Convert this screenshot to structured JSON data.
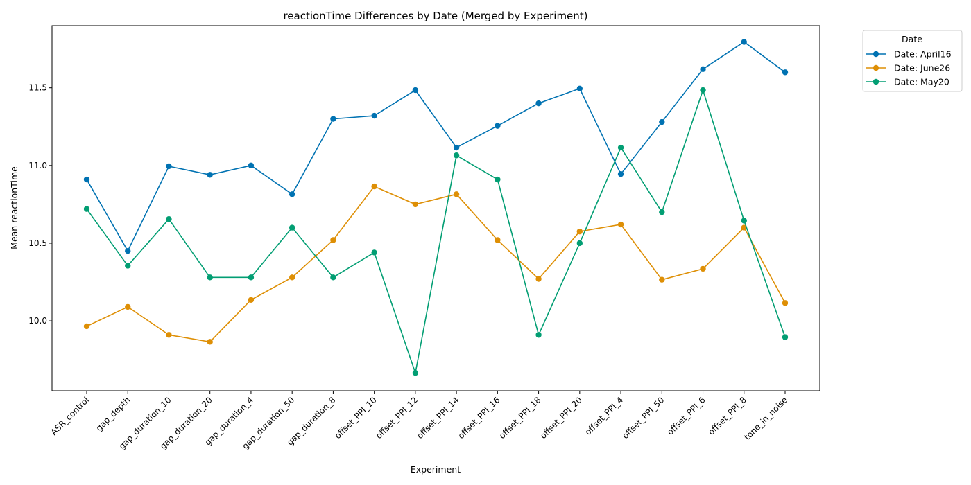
{
  "chart_data": {
    "type": "line",
    "title": "reactionTime Differences by Date (Merged by Experiment)",
    "xlabel": "Experiment",
    "ylabel": "Mean reactionTime",
    "ylim": [
      9.55,
      11.9
    ],
    "yticks": [
      10.0,
      10.5,
      11.0,
      11.5
    ],
    "grid": false,
    "legend_title": "Date",
    "legend_position": "outside-top-right",
    "categories": [
      "ASR_control",
      "gap_depth",
      "gap_duration_10",
      "gap_duration_20",
      "gap_duration_4",
      "gap_duration_50",
      "gap_duration_8",
      "offset_PPI_10",
      "offset_PPI_12",
      "offset_PPI_14",
      "offset_PPI_16",
      "offset_PPI_18",
      "offset_PPI_20",
      "offset_PPI_4",
      "offset_PPI_50",
      "offset_PPI_6",
      "offset_PPI_8",
      "tone_in_noise"
    ],
    "series": [
      {
        "name": "Date: April16",
        "color": "#0072b2",
        "values": [
          10.91,
          10.45,
          10.995,
          10.94,
          11.0,
          10.815,
          11.3,
          11.32,
          11.485,
          11.115,
          11.255,
          11.4,
          11.495,
          10.945,
          11.28,
          11.62,
          11.795,
          11.6
        ]
      },
      {
        "name": "Date: June26",
        "color": "#de8f05",
        "values": [
          9.965,
          10.09,
          9.91,
          9.865,
          10.135,
          10.28,
          10.52,
          10.865,
          10.75,
          10.815,
          10.52,
          10.27,
          10.575,
          10.62,
          10.265,
          10.335,
          10.6,
          10.115
        ]
      },
      {
        "name": "Date: May20",
        "color": "#029e73",
        "values": [
          10.72,
          10.355,
          10.655,
          10.28,
          10.28,
          10.6,
          10.28,
          10.44,
          9.665,
          11.065,
          10.91,
          9.91,
          10.5,
          11.115,
          10.7,
          11.485,
          10.645,
          9.895
        ]
      }
    ]
  }
}
